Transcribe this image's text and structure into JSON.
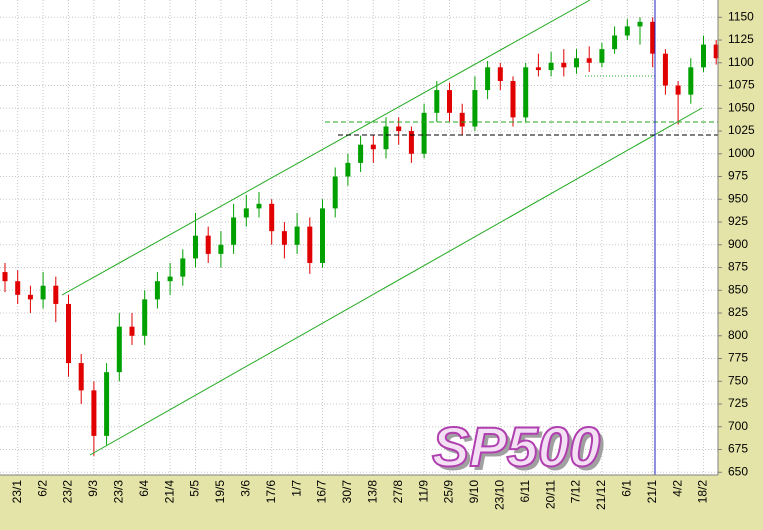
{
  "chart_data": {
    "type": "candlestick",
    "title": "SP500",
    "categories": [
      null,
      "23/1",
      null,
      "6/2",
      null,
      "23/2",
      null,
      "9/3",
      null,
      "23/3",
      null,
      "6/4",
      null,
      "21/4",
      null,
      "5/5",
      null,
      "19/5",
      null,
      "3/6",
      null,
      "17/6",
      null,
      "1/7",
      null,
      "16/7",
      null,
      "30/7",
      null,
      "13/8",
      null,
      "27/8",
      null,
      "11/9",
      null,
      "25/9",
      null,
      "9/10",
      null,
      "23/10",
      null,
      "6/11",
      null,
      "20/11",
      null,
      "7/12",
      null,
      "21/12",
      null,
      "6/1",
      null,
      "21/1",
      null,
      "4/2",
      null,
      "18/2",
      null
    ],
    "open": [
      870,
      860,
      845,
      840,
      855,
      835,
      770,
      740,
      690,
      760,
      810,
      800,
      840,
      860,
      865,
      885,
      910,
      890,
      900,
      930,
      940,
      945,
      915,
      900,
      920,
      880,
      940,
      975,
      990,
      1010,
      1005,
      1030,
      1025,
      1000,
      1045,
      1070,
      1045,
      1030,
      1070,
      1095,
      1080,
      1040,
      1095,
      1092,
      1100,
      1095,
      1105,
      1100,
      1115,
      1130,
      1140,
      1145,
      1110,
      1075,
      1065,
      1095,
      1120
    ],
    "high": [
      880,
      872,
      855,
      870,
      865,
      845,
      780,
      750,
      770,
      825,
      825,
      850,
      870,
      880,
      895,
      935,
      920,
      915,
      945,
      955,
      958,
      950,
      925,
      935,
      930,
      950,
      985,
      1000,
      1020,
      1020,
      1040,
      1040,
      1030,
      1055,
      1080,
      1078,
      1055,
      1085,
      1102,
      1100,
      1085,
      1100,
      1110,
      1112,
      1115,
      1115,
      1118,
      1122,
      1140,
      1148,
      1150,
      1150,
      1115,
      1080,
      1105,
      1130,
      1125
    ],
    "low": [
      848,
      835,
      825,
      830,
      815,
      755,
      725,
      668,
      680,
      750,
      790,
      790,
      830,
      845,
      855,
      875,
      880,
      875,
      890,
      920,
      930,
      900,
      885,
      890,
      868,
      875,
      930,
      965,
      980,
      990,
      995,
      1010,
      990,
      995,
      1035,
      1035,
      1020,
      1025,
      1060,
      1070,
      1030,
      1035,
      1085,
      1085,
      1085,
      1088,
      1090,
      1095,
      1110,
      1125,
      1120,
      1095,
      1065,
      1032,
      1055,
      1090,
      1098
    ],
    "close": [
      860,
      845,
      840,
      855,
      835,
      770,
      740,
      690,
      760,
      810,
      800,
      840,
      860,
      865,
      885,
      910,
      890,
      900,
      930,
      940,
      945,
      915,
      900,
      920,
      880,
      940,
      975,
      990,
      1010,
      1005,
      1030,
      1025,
      1000,
      1045,
      1070,
      1045,
      1030,
      1070,
      1095,
      1080,
      1040,
      1095,
      1092,
      1100,
      1095,
      1105,
      1100,
      1115,
      1130,
      1140,
      1145,
      1110,
      1075,
      1065,
      1095,
      1120,
      1105
    ],
    "up_color": "#00a000",
    "down_color": "#e00000",
    "ylim": [
      647,
      1169
    ],
    "yticks": [
      650,
      675,
      700,
      725,
      750,
      775,
      800,
      825,
      850,
      875,
      900,
      925,
      950,
      975,
      1000,
      1025,
      1050,
      1075,
      1100,
      1125,
      1150
    ],
    "grid": true
  }
}
